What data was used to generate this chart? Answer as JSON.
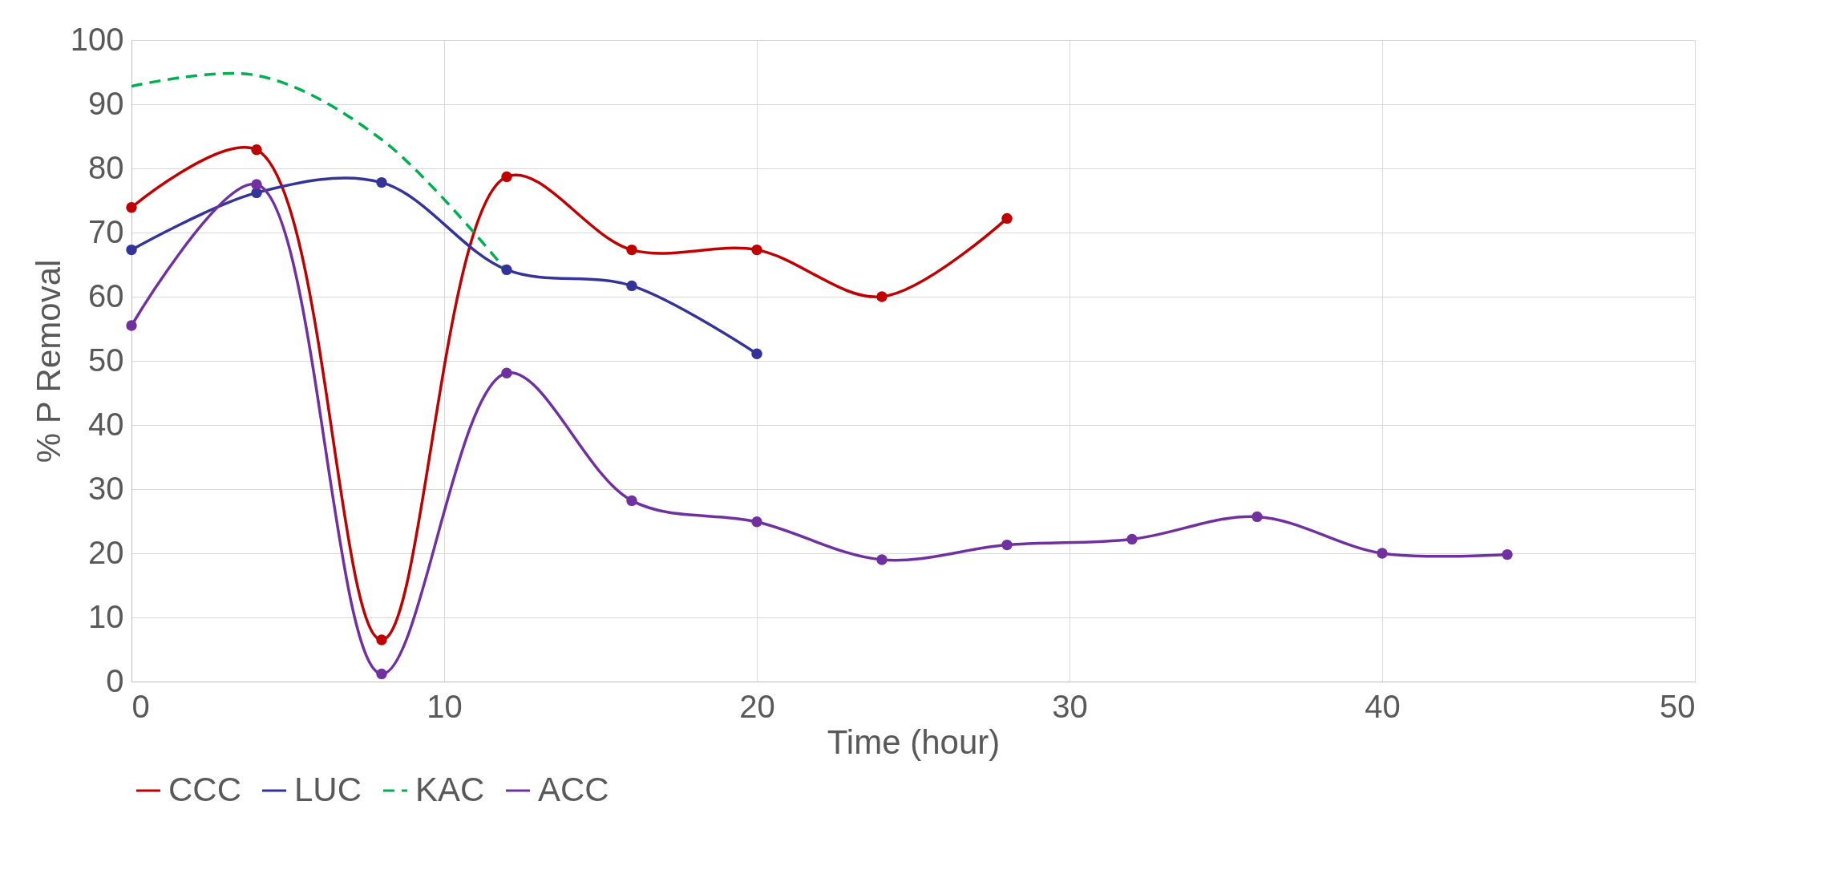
{
  "chart_data": {
    "type": "line",
    "xlabel": "Time (hour)",
    "ylabel": "% P Removal",
    "xlim": [
      0,
      50
    ],
    "xticks": [
      0,
      10,
      20,
      30,
      40,
      50
    ],
    "ylim": [
      0,
      100
    ],
    "yticks": [
      0,
      10,
      20,
      30,
      40,
      50,
      60,
      70,
      80,
      90,
      100
    ],
    "grid": true,
    "legend": "bottom",
    "marker": "circle",
    "line_style": "solid",
    "series": [
      {
        "name": "CCC",
        "color": "#c00000",
        "x": [
          0,
          4,
          8,
          12,
          16,
          20,
          24,
          28
        ],
        "values": [
          73.9,
          82.9,
          6.5,
          78.7,
          67.3,
          67.3,
          60,
          72.2
        ]
      },
      {
        "name": "LUC",
        "color": "#333399",
        "x": [
          0,
          4,
          8,
          12,
          16,
          20
        ],
        "values": [
          67.3,
          76.2,
          77.8,
          64.2,
          61.7,
          51.1
        ]
      },
      {
        "name": "KAC",
        "color": "#00b050",
        "marker": "none",
        "line_style": "dashed",
        "x": [
          0,
          4,
          8,
          12
        ],
        "values": [
          92.8,
          94.5,
          84.5,
          64
        ]
      },
      {
        "name": "ACC",
        "color": "#7030a0",
        "x": [
          0,
          4,
          8,
          12,
          16,
          20,
          24,
          28,
          32,
          36,
          40,
          44
        ],
        "values": [
          55.5,
          77.5,
          1.2,
          48.1,
          28.2,
          24.9,
          19.0,
          21.3,
          22.2,
          25.7,
          20.0,
          19.8
        ]
      }
    ]
  }
}
